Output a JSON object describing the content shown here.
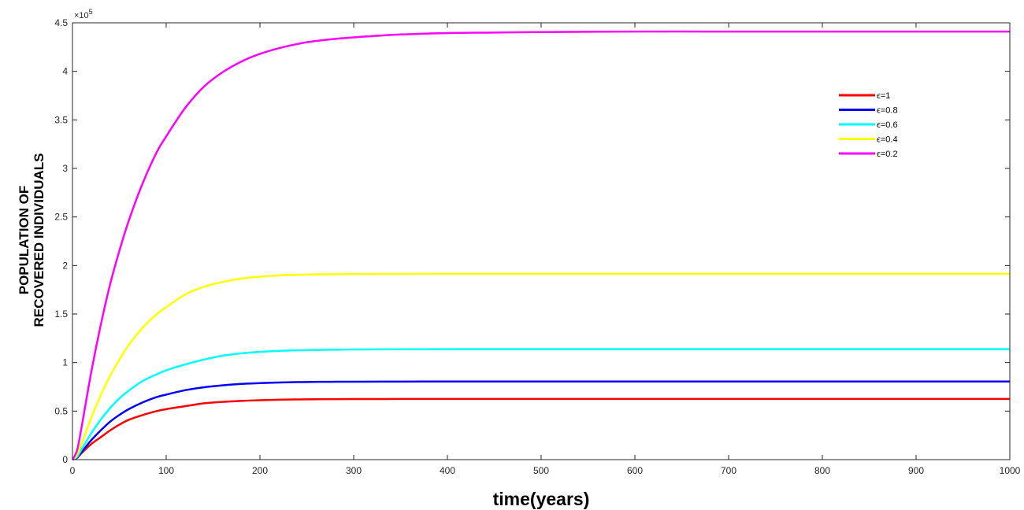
{
  "chart_data": {
    "type": "line",
    "title": "",
    "xlabel": "time(years)",
    "ylabel_lines": [
      "POPULATION OF",
      "RECOVERED INDIVIDUALS"
    ],
    "y_exponent_label": "×10",
    "y_exponent_power": "5",
    "xlim": [
      0,
      1000
    ],
    "ylim": [
      0,
      4.5
    ],
    "xticks": [
      0,
      100,
      200,
      300,
      400,
      500,
      600,
      700,
      800,
      900,
      1000
    ],
    "yticks": [
      0,
      0.5,
      1,
      1.5,
      2,
      2.5,
      3,
      3.5,
      4,
      4.5
    ],
    "grid": false,
    "box": true,
    "legend_position": "top-right",
    "x": [
      0,
      5,
      10,
      20,
      30,
      40,
      50,
      60,
      75,
      90,
      100,
      120,
      140,
      160,
      180,
      200,
      225,
      250,
      275,
      300,
      350,
      400,
      450,
      500,
      600,
      700,
      800,
      900,
      1000
    ],
    "series": [
      {
        "name": "ϵ=1",
        "color": "#ff0000",
        "values": [
          0,
          0.02,
          0.07,
          0.16,
          0.23,
          0.3,
          0.36,
          0.41,
          0.46,
          0.5,
          0.52,
          0.55,
          0.58,
          0.595,
          0.605,
          0.612,
          0.618,
          0.621,
          0.623,
          0.624,
          0.625,
          0.625,
          0.625,
          0.625,
          0.625,
          0.625,
          0.625,
          0.625,
          0.625
        ]
      },
      {
        "name": "ϵ=0.8",
        "color": "#0000ff",
        "values": [
          0,
          0.02,
          0.08,
          0.2,
          0.3,
          0.39,
          0.46,
          0.52,
          0.59,
          0.645,
          0.67,
          0.715,
          0.745,
          0.765,
          0.78,
          0.788,
          0.796,
          0.8,
          0.802,
          0.803,
          0.804,
          0.805,
          0.805,
          0.805,
          0.805,
          0.805,
          0.805,
          0.805,
          0.805
        ]
      },
      {
        "name": "ϵ=0.6",
        "color": "#00ffff",
        "values": [
          0,
          0.03,
          0.11,
          0.27,
          0.41,
          0.53,
          0.63,
          0.71,
          0.81,
          0.88,
          0.92,
          0.98,
          1.03,
          1.07,
          1.095,
          1.11,
          1.122,
          1.128,
          1.132,
          1.135,
          1.137,
          1.138,
          1.138,
          1.138,
          1.138,
          1.138,
          1.138,
          1.138,
          1.138
        ]
      },
      {
        "name": "ϵ=0.4",
        "color": "#ffff00",
        "values": [
          0,
          0.05,
          0.17,
          0.43,
          0.66,
          0.86,
          1.03,
          1.18,
          1.36,
          1.5,
          1.57,
          1.7,
          1.78,
          1.83,
          1.865,
          1.885,
          1.9,
          1.907,
          1.91,
          1.912,
          1.914,
          1.915,
          1.915,
          1.915,
          1.915,
          1.915,
          1.915,
          1.915,
          1.915
        ]
      },
      {
        "name": "ϵ=0.2",
        "color": "#ff00ff",
        "values": [
          0,
          0.1,
          0.35,
          0.9,
          1.38,
          1.8,
          2.15,
          2.46,
          2.85,
          3.17,
          3.33,
          3.62,
          3.84,
          3.99,
          4.1,
          4.18,
          4.25,
          4.3,
          4.33,
          4.35,
          4.38,
          4.395,
          4.4,
          4.405,
          4.41,
          4.41,
          4.41,
          4.41,
          4.41
        ]
      }
    ]
  }
}
